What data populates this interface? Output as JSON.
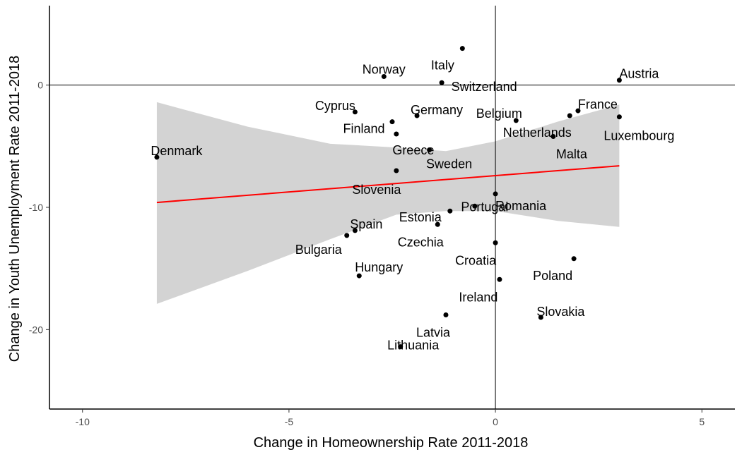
{
  "chart_data": {
    "type": "scatter",
    "title": "",
    "xlabel": "Change in Homeownership Rate 2011-2018",
    "ylabel": "Change in Youth Unemployment Rate 2011-2018",
    "xlim": [
      -10.8,
      5.8
    ],
    "ylim": [
      -26.5,
      6.5
    ],
    "xticks": [
      -10,
      -5,
      0,
      5
    ],
    "yticks": [
      -20,
      -10,
      0
    ],
    "grid": false,
    "reference_lines": {
      "x": 0,
      "y": 0
    },
    "points": [
      {
        "label": "Norway",
        "x": -2.7,
        "y": 0.7
      },
      {
        "label": "Italy",
        "x": -0.8,
        "y": 3.0
      },
      {
        "label": "Switzerland",
        "x": -1.3,
        "y": 0.2
      },
      {
        "label": "Austria",
        "x": 3.0,
        "y": 0.4
      },
      {
        "label": "Cyprus",
        "x": -3.4,
        "y": -2.2
      },
      {
        "label": "Germany",
        "x": -1.9,
        "y": -2.5
      },
      {
        "label": "Belgium",
        "x": 0.5,
        "y": -2.9
      },
      {
        "label": "France",
        "x": 2.0,
        "y": -2.1
      },
      {
        "label": "Finland",
        "x": -2.5,
        "y": -3.0
      },
      {
        "label": "Netherlands",
        "x": 1.8,
        "y": -2.5
      },
      {
        "label": "Luxembourg",
        "x": 3.0,
        "y": -2.6
      },
      {
        "label": "Greece",
        "x": -2.4,
        "y": -4.0
      },
      {
        "label": "Malta",
        "x": 1.4,
        "y": -4.2
      },
      {
        "label": "Denmark",
        "x": -8.2,
        "y": -5.9
      },
      {
        "label": "Sweden",
        "x": -1.6,
        "y": -5.3
      },
      {
        "label": "Slovenia",
        "x": -2.4,
        "y": -7.0
      },
      {
        "label": "Romania",
        "x": 0.0,
        "y": -8.9
      },
      {
        "label": "Portugal",
        "x": -0.5,
        "y": -9.9
      },
      {
        "label": "Estonia",
        "x": -1.1,
        "y": -10.3
      },
      {
        "label": "Spain",
        "x": -3.4,
        "y": -11.9
      },
      {
        "label": "Czechia",
        "x": -1.4,
        "y": -11.4
      },
      {
        "label": "Bulgaria",
        "x": -3.6,
        "y": -12.3
      },
      {
        "label": "Croatia",
        "x": 0.0,
        "y": -12.9
      },
      {
        "label": "Poland",
        "x": 1.9,
        "y": -14.2
      },
      {
        "label": "Hungary",
        "x": -3.3,
        "y": -15.6
      },
      {
        "label": "Ireland",
        "x": 0.1,
        "y": -15.9
      },
      {
        "label": "Slovakia",
        "x": 1.1,
        "y": -19.0
      },
      {
        "label": "Latvia",
        "x": -1.2,
        "y": -18.8
      },
      {
        "label": "Lithuania",
        "x": -2.3,
        "y": -21.4
      }
    ],
    "fit_line": {
      "method": "linear",
      "color": "#ff0000",
      "x": [
        -8.2,
        3.0
      ],
      "y": [
        -9.6,
        -6.6
      ],
      "confidence_band": {
        "color": "#d3d3d3",
        "x": [
          -8.2,
          -6,
          -4,
          -2.4,
          -1.2,
          0,
          1.5,
          3.0
        ],
        "lower": [
          -17.9,
          -15.2,
          -12.6,
          -10.6,
          -10.3,
          -10.3,
          -11.1,
          -11.6
        ],
        "upper": [
          -1.4,
          -3.4,
          -4.8,
          -5.1,
          -5.4,
          -4.6,
          -3.0,
          -1.6
        ]
      }
    }
  }
}
